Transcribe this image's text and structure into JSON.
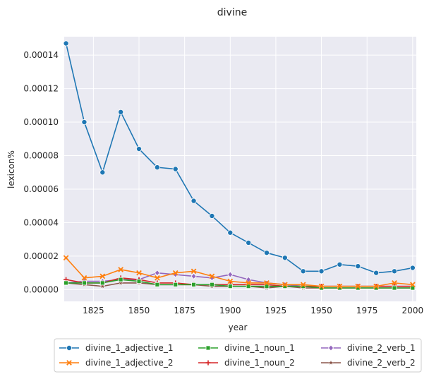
{
  "chart_data": {
    "type": "line",
    "title": "divine",
    "xlabel": "year",
    "ylabel": "lexicon%",
    "xlim": [
      1809,
      2002
    ],
    "ylim": [
      -7e-06,
      0.000151
    ],
    "grid": true,
    "legend_position": "bottom-center",
    "x_ticks": [
      1825,
      1850,
      1875,
      1900,
      1925,
      1950,
      1975,
      2000
    ],
    "y_ticks": [
      0.0,
      2e-05,
      4e-05,
      6e-05,
      8e-05,
      0.0001,
      0.00012,
      0.00014
    ],
    "y_tick_labels": [
      "0.00000",
      "0.00002",
      "0.00004",
      "0.00006",
      "0.00008",
      "0.00010",
      "0.00012",
      "0.00014"
    ],
    "x": [
      1810,
      1820,
      1830,
      1840,
      1850,
      1860,
      1870,
      1880,
      1890,
      1900,
      1910,
      1920,
      1930,
      1940,
      1950,
      1960,
      1970,
      1980,
      1990,
      2000
    ],
    "series": [
      {
        "name": "divine_1_adjective_1",
        "color": "#1f77b4",
        "marker": "circle",
        "values": [
          0.000147,
          0.0001,
          7e-05,
          0.000106,
          8.4e-05,
          7.3e-05,
          7.2e-05,
          5.3e-05,
          4.4e-05,
          3.4e-05,
          2.8e-05,
          2.2e-05,
          1.9e-05,
          1.1e-05,
          1.1e-05,
          1.5e-05,
          1.4e-05,
          1e-05,
          1.1e-05,
          1.3e-05
        ]
      },
      {
        "name": "divine_1_adjective_2",
        "color": "#ff7f0e",
        "marker": "x",
        "values": [
          1.9e-05,
          7e-06,
          8e-06,
          1.2e-05,
          1e-05,
          7e-06,
          1e-05,
          1.1e-05,
          8e-06,
          5e-06,
          4e-06,
          4e-06,
          3e-06,
          3e-06,
          2e-06,
          2e-06,
          2e-06,
          2e-06,
          4e-06,
          3e-06
        ]
      },
      {
        "name": "divine_1_noun_1",
        "color": "#2ca02c",
        "marker": "square",
        "values": [
          4e-06,
          4e-06,
          4e-06,
          6e-06,
          5e-06,
          3e-06,
          3e-06,
          3e-06,
          3e-06,
          2e-06,
          2e-06,
          2e-06,
          2e-06,
          2e-06,
          1e-06,
          1e-06,
          1e-06,
          1e-06,
          1e-06,
          1e-06
        ]
      },
      {
        "name": "divine_1_noun_2",
        "color": "#d62728",
        "marker": "plus",
        "values": [
          6e-06,
          4e-06,
          4e-06,
          7e-06,
          6e-06,
          4e-06,
          4e-06,
          3e-06,
          3e-06,
          3e-06,
          3e-06,
          3e-06,
          2e-06,
          2e-06,
          2e-06,
          2e-06,
          2e-06,
          2e-06,
          2e-06,
          2e-06
        ]
      },
      {
        "name": "divine_2_verb_1",
        "color": "#9467bd",
        "marker": "diamond",
        "values": [
          4e-06,
          5e-06,
          5e-06,
          6e-06,
          6e-06,
          1e-05,
          9e-06,
          8e-06,
          7e-06,
          9e-06,
          6e-06,
          4e-06,
          3e-06,
          2e-06,
          2e-06,
          2e-06,
          2e-06,
          2e-06,
          2e-06,
          2e-06
        ]
      },
      {
        "name": "divine_2_verb_2",
        "color": "#8c564b",
        "marker": "star",
        "values": [
          4e-06,
          3e-06,
          2e-06,
          4e-06,
          4e-06,
          3e-06,
          3e-06,
          3e-06,
          2e-06,
          2e-06,
          2e-06,
          1e-06,
          2e-06,
          1e-06,
          1e-06,
          1e-06,
          1e-06,
          1e-06,
          1e-06,
          1e-06
        ]
      }
    ]
  }
}
